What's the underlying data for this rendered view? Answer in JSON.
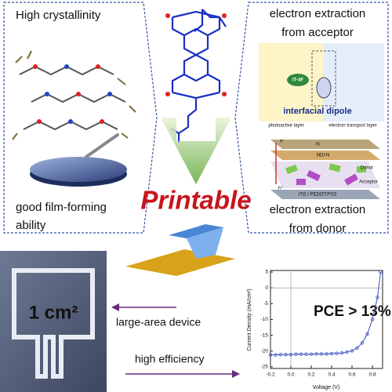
{
  "left_panel": {
    "title": "High crystallinity",
    "caption_lines": [
      "good film-forming",
      "ability"
    ]
  },
  "center": {
    "label": "Printable"
  },
  "right_panel": {
    "top_caption_lines": [
      "electron extraction",
      "from acceptor"
    ],
    "dipole": {
      "molecule": "IT-4F",
      "label": "interfacial dipole",
      "left_layer": "photoactive layer",
      "right_layer": "electron transport layer"
    },
    "stack": {
      "layers": [
        "Al",
        "NDI-N",
        "Donor",
        "Acceptor",
        "ITO / PEDOT:PSS"
      ],
      "electron": "e⁻",
      "hole": "h⁺"
    },
    "bottom_caption_lines": [
      "electron extraction",
      "from donor"
    ]
  },
  "device": {
    "area": "1 cm²",
    "caption": "large-area device"
  },
  "efficiency": {
    "caption": "high efficiency"
  },
  "chart_data": {
    "type": "line",
    "annotation": "PCE > 13%",
    "x_label": "Voltage (V)",
    "y_label": "Current Density (mA/cm²)",
    "x": [
      -0.2,
      -0.15,
      -0.1,
      -0.05,
      0,
      0.05,
      0.1,
      0.15,
      0.2,
      0.25,
      0.3,
      0.35,
      0.4,
      0.45,
      0.5,
      0.55,
      0.6,
      0.65,
      0.7,
      0.75,
      0.8,
      0.85,
      0.88
    ],
    "series": [
      {
        "color": "#3b4fc4",
        "values": [
          -21.2,
          -21.2,
          -21.1,
          -21.1,
          -21.1,
          -21.0,
          -21.0,
          -21.0,
          -21.0,
          -20.9,
          -20.9,
          -20.9,
          -20.8,
          -20.7,
          -20.6,
          -20.3,
          -19.9,
          -19.0,
          -17.4,
          -14.6,
          -10.0,
          -3.0,
          5
        ]
      }
    ],
    "xlim": [
      -0.2,
      0.9
    ],
    "ylim": [
      -25,
      5
    ],
    "xticks": [
      -0.2,
      {
        "value": 0,
        "label": "0.0"
      },
      0.2,
      0.4,
      0.6,
      0.8
    ],
    "yticks": [
      5,
      0,
      -5,
      -10,
      -15,
      -20,
      -25
    ]
  }
}
